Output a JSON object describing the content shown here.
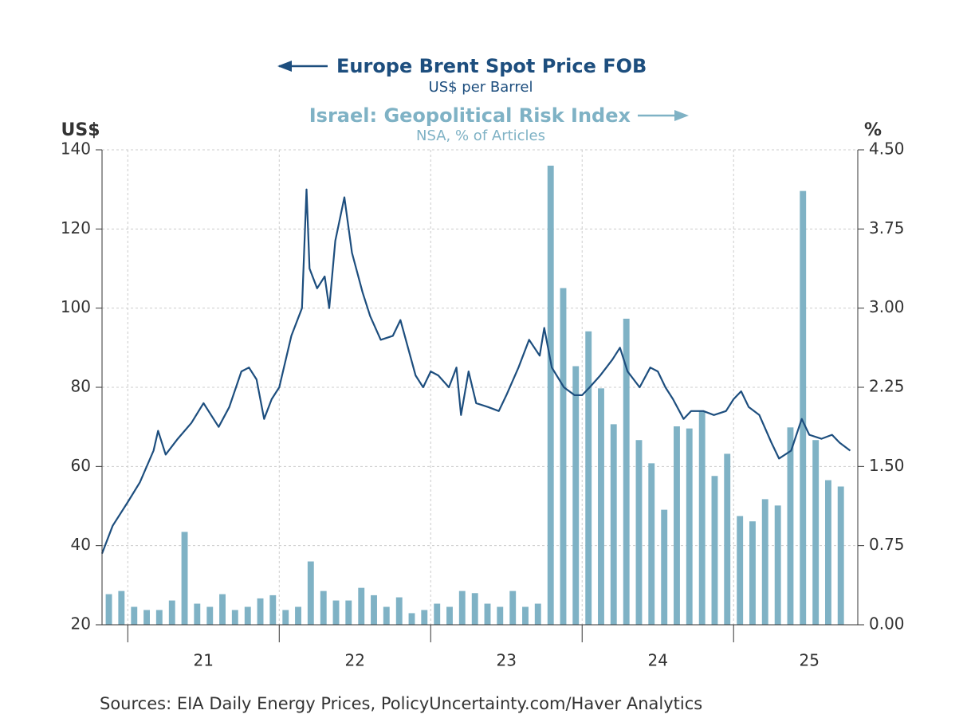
{
  "chart_data": {
    "type": "line",
    "ylabel": "US$",
    "y2label": "%",
    "source": "Sources:  EIA Daily Energy Prices, PolicyUncertainty.com/Haver Analytics",
    "xlim": [
      2020.83,
      2025.82
    ],
    "xticks": [
      {
        "value": 2021,
        "label": "21"
      },
      {
        "value": 2022,
        "label": "22"
      },
      {
        "value": 2023,
        "label": "23"
      },
      {
        "value": 2024,
        "label": "24"
      },
      {
        "value": 2025,
        "label": "25"
      }
    ],
    "ylim": [
      20,
      140
    ],
    "yticks": [
      20,
      40,
      60,
      80,
      100,
      120,
      140
    ],
    "y2lim": [
      0,
      4.5
    ],
    "y2ticks": [
      {
        "value": 0,
        "label": "0.00"
      },
      {
        "value": 0.75,
        "label": "0.75"
      },
      {
        "value": 1.5,
        "label": "1.50"
      },
      {
        "value": 2.25,
        "label": "2.25"
      },
      {
        "value": 3,
        "label": "3.00"
      },
      {
        "value": 3.75,
        "label": "3.75"
      },
      {
        "value": 4.5,
        "label": "4.50"
      }
    ],
    "grid": true,
    "series": [
      {
        "name": "Europe Brent Spot Price FOB",
        "units": "US$ per Barrel",
        "type": "line",
        "color": "#1d4e7e",
        "x": [
          2020.83,
          2020.9,
          2021.0,
          2021.08,
          2021.17,
          2021.2,
          2021.25,
          2021.33,
          2021.42,
          2021.5,
          2021.55,
          2021.6,
          2021.67,
          2021.75,
          2021.8,
          2021.85,
          2021.9,
          2021.95,
          2022.0,
          2022.08,
          2022.15,
          2022.18,
          2022.2,
          2022.25,
          2022.3,
          2022.33,
          2022.37,
          2022.43,
          2022.48,
          2022.55,
          2022.6,
          2022.67,
          2022.75,
          2022.8,
          2022.85,
          2022.9,
          2022.95,
          2023.0,
          2023.05,
          2023.12,
          2023.17,
          2023.2,
          2023.25,
          2023.3,
          2023.38,
          2023.45,
          2023.5,
          2023.58,
          2023.65,
          2023.72,
          2023.75,
          2023.8,
          2023.88,
          2023.95,
          2024.0,
          2024.05,
          2024.12,
          2024.2,
          2024.25,
          2024.3,
          2024.38,
          2024.45,
          2024.5,
          2024.55,
          2024.6,
          2024.67,
          2024.72,
          2024.8,
          2024.87,
          2024.95,
          2025.0,
          2025.05,
          2025.1,
          2025.17,
          2025.25,
          2025.3,
          2025.38,
          2025.45,
          2025.5,
          2025.58,
          2025.65,
          2025.7,
          2025.77
        ],
        "values": [
          38,
          45,
          51,
          56,
          64,
          69,
          63,
          67,
          71,
          76,
          73,
          70,
          75,
          84,
          85,
          82,
          72,
          77,
          80,
          93,
          100,
          130,
          110,
          105,
          108,
          100,
          117,
          128,
          114,
          104,
          98,
          92,
          93,
          97,
          90,
          83,
          80,
          84,
          83,
          80,
          85,
          73,
          84,
          76,
          75,
          74,
          78,
          85,
          92,
          88,
          95,
          85,
          80,
          78,
          78,
          80,
          83,
          87,
          90,
          84,
          80,
          85,
          84,
          80,
          77,
          72,
          74,
          74,
          73,
          74,
          77,
          79,
          75,
          73,
          66,
          62,
          64,
          72,
          68,
          67,
          68,
          66,
          64
        ]
      },
      {
        "name": "Israel: Geopolitical Risk Index",
        "units": "NSA, % of Articles",
        "type": "bar",
        "axis": "y2",
        "color": "#7fb2c5",
        "x": [
          2020.875,
          2020.958,
          2021.042,
          2021.125,
          2021.208,
          2021.292,
          2021.375,
          2021.458,
          2021.542,
          2021.625,
          2021.708,
          2021.792,
          2021.875,
          2021.958,
          2022.042,
          2022.125,
          2022.208,
          2022.292,
          2022.375,
          2022.458,
          2022.542,
          2022.625,
          2022.708,
          2022.792,
          2022.875,
          2022.958,
          2023.042,
          2023.125,
          2023.208,
          2023.292,
          2023.375,
          2023.458,
          2023.542,
          2023.625,
          2023.708,
          2023.792,
          2023.875,
          2023.958,
          2024.042,
          2024.125,
          2024.208,
          2024.292,
          2024.375,
          2024.458,
          2024.542,
          2024.625,
          2024.708,
          2024.792,
          2024.875,
          2024.958,
          2025.042,
          2025.125,
          2025.208,
          2025.292,
          2025.375,
          2025.458,
          2025.542,
          2025.625,
          2025.708
        ],
        "values": [
          0.29,
          0.32,
          0.17,
          0.14,
          0.14,
          0.23,
          0.88,
          0.2,
          0.17,
          0.29,
          0.14,
          0.17,
          0.25,
          0.28,
          0.14,
          0.17,
          0.6,
          0.32,
          0.23,
          0.23,
          0.35,
          0.28,
          0.17,
          0.26,
          0.11,
          0.14,
          0.2,
          0.17,
          0.32,
          0.3,
          0.2,
          0.17,
          0.32,
          0.17,
          0.2,
          4.35,
          3.19,
          2.45,
          2.78,
          2.24,
          1.9,
          2.9,
          1.75,
          1.53,
          1.09,
          1.88,
          1.86,
          2.02,
          1.41,
          1.62,
          1.03,
          0.98,
          1.19,
          1.13,
          1.87,
          4.11,
          1.75,
          1.37,
          1.31
        ]
      }
    ]
  }
}
